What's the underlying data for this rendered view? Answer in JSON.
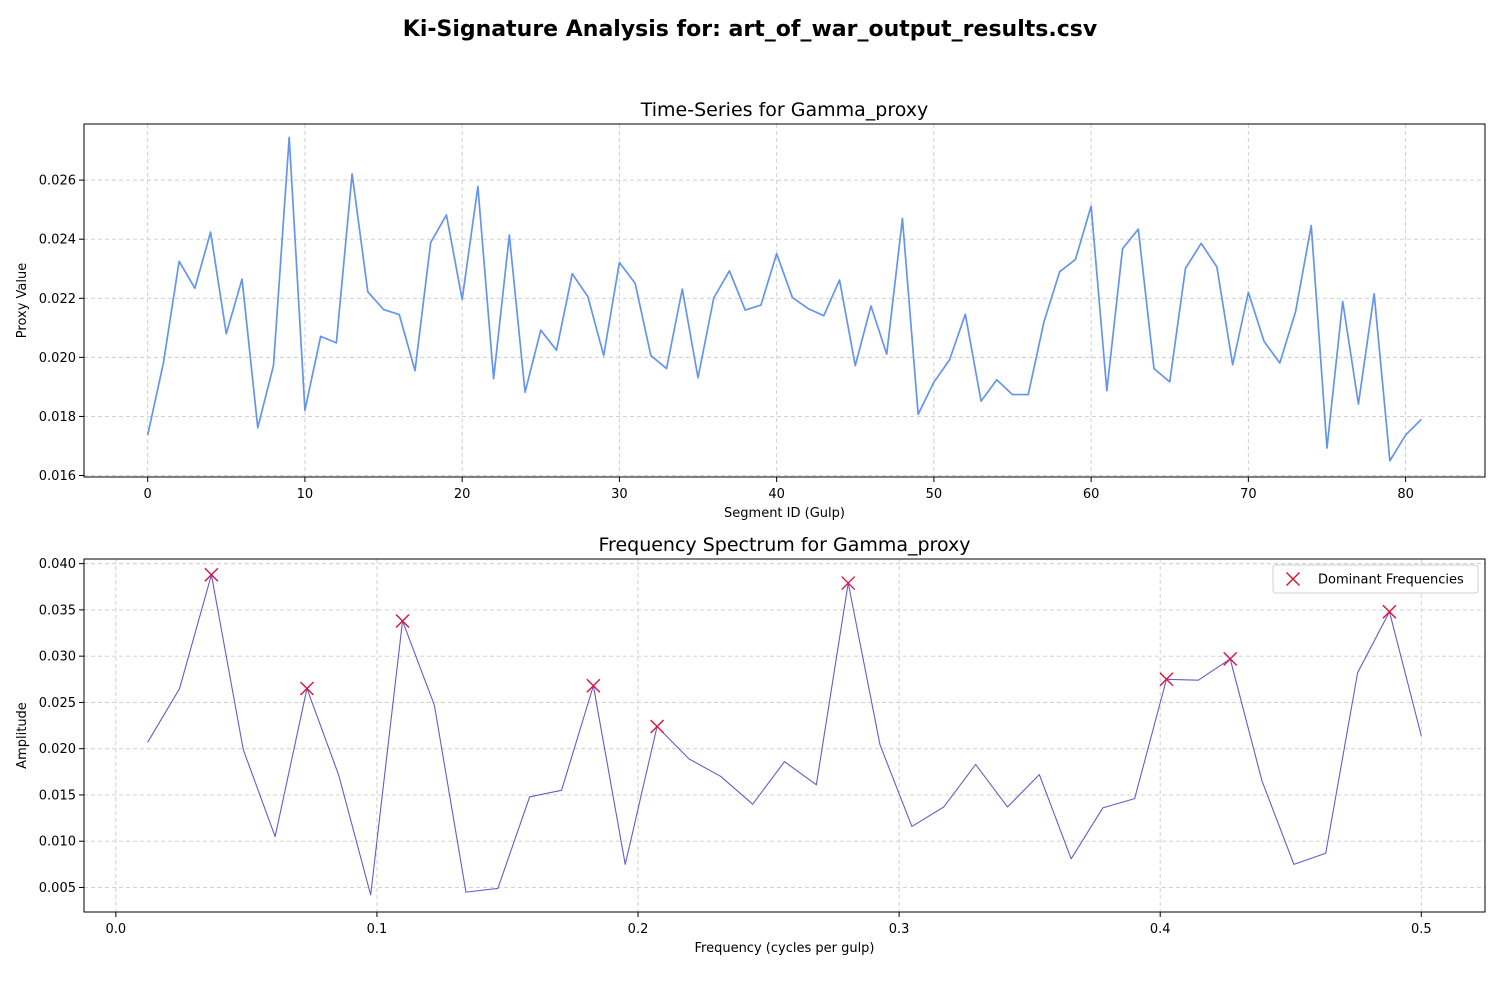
{
  "figure": {
    "suptitle": "Ki-Signature Analysis for: art_of_war_output_results.csv"
  },
  "colors": {
    "series_line": "#6495ed",
    "spectrum_line": "#6a5acd",
    "peak_marker": "#dc143c",
    "grid": "#cccccc",
    "axes": "#000000"
  },
  "chart_data": [
    {
      "type": "line",
      "title": "Time-Series for Gamma_proxy",
      "xlabel": "Segment ID (Gulp)",
      "ylabel": "Proxy Value",
      "xlim": [
        -4.05,
        85.05
      ],
      "ylim": [
        0.01595,
        0.0279
      ],
      "xticks": [
        0,
        10,
        20,
        30,
        40,
        50,
        60,
        70,
        80
      ],
      "xtick_labels": [
        "0",
        "10",
        "20",
        "30",
        "40",
        "50",
        "60",
        "70",
        "80"
      ],
      "yticks": [
        0.016,
        0.018,
        0.02,
        0.022,
        0.024,
        0.026
      ],
      "ytick_labels": [
        "0.016",
        "0.018",
        "0.020",
        "0.022",
        "0.024",
        "0.026"
      ],
      "grid": true,
      "series": [
        {
          "x": [
            0,
            1,
            2,
            3,
            4,
            5,
            6,
            7,
            8,
            9,
            10,
            11,
            12,
            13,
            14,
            15,
            16,
            17,
            18,
            19,
            20,
            21,
            22,
            23,
            24,
            25,
            26,
            27,
            28,
            29,
            30,
            31,
            32,
            33,
            34,
            35,
            36,
            37,
            38,
            39,
            40,
            41,
            42,
            43,
            44,
            45,
            46,
            47,
            48,
            49,
            50,
            51,
            52,
            53,
            54,
            55,
            56,
            57,
            58,
            59,
            60,
            61,
            62,
            63,
            64,
            65,
            66,
            67,
            68,
            69,
            70,
            71,
            72,
            73,
            74,
            75,
            76,
            77,
            78,
            79,
            80,
            81
          ],
          "values": [
            0.01737,
            0.01981,
            0.02325,
            0.02234,
            0.02424,
            0.0208,
            0.02265,
            0.01762,
            0.01972,
            0.02745,
            0.01821,
            0.02071,
            0.02049,
            0.02621,
            0.02222,
            0.02162,
            0.02145,
            0.01955,
            0.02389,
            0.02482,
            0.02196,
            0.02578,
            0.01928,
            0.02414,
            0.01882,
            0.02092,
            0.02024,
            0.02283,
            0.02205,
            0.02006,
            0.02321,
            0.02251,
            0.02006,
            0.01962,
            0.02231,
            0.01931,
            0.02201,
            0.02293,
            0.0216,
            0.02177,
            0.02351,
            0.02203,
            0.02165,
            0.02141,
            0.02262,
            0.01972,
            0.02174,
            0.02011,
            0.0247,
            0.01807,
            0.01916,
            0.01992,
            0.02146,
            0.01852,
            0.01924,
            0.01874,
            0.01874,
            0.0212,
            0.0229,
            0.02331,
            0.02512,
            0.01887,
            0.02368,
            0.02434,
            0.01962,
            0.01917,
            0.02301,
            0.02386,
            0.02306,
            0.01975,
            0.0222,
            0.02054,
            0.01981,
            0.02154,
            0.02446,
            0.01693,
            0.02189,
            0.01842,
            0.02215,
            0.0165,
            0.01737,
            0.0179
          ]
        }
      ]
    },
    {
      "type": "line",
      "title": "Frequency Spectrum for Gamma_proxy",
      "xlabel": "Frequency (cycles per gulp)",
      "ylabel": "Amplitude",
      "xlim": [
        -0.0122,
        0.5244
      ],
      "ylim": [
        0.00235,
        0.0405
      ],
      "xticks": [
        0.0,
        0.1,
        0.2,
        0.3,
        0.4,
        0.5
      ],
      "xtick_labels": [
        "0.0",
        "0.1",
        "0.2",
        "0.3",
        "0.4",
        "0.5"
      ],
      "yticks": [
        0.005,
        0.01,
        0.015,
        0.02,
        0.025,
        0.03,
        0.035,
        0.04
      ],
      "ytick_labels": [
        "0.005",
        "0.010",
        "0.015",
        "0.020",
        "0.025",
        "0.030",
        "0.035",
        "0.040"
      ],
      "grid": true,
      "legend": {
        "position": "top-right",
        "entries": [
          "Dominant Frequencies"
        ]
      },
      "series": [
        {
          "x": [
            0.0122,
            0.0244,
            0.0366,
            0.0488,
            0.061,
            0.0732,
            0.0854,
            0.0976,
            0.1098,
            0.122,
            0.1341,
            0.1463,
            0.1585,
            0.1707,
            0.1829,
            0.1951,
            0.2073,
            0.2195,
            0.2317,
            0.2439,
            0.2561,
            0.2683,
            0.2805,
            0.2927,
            0.3049,
            0.3171,
            0.3293,
            0.3415,
            0.3537,
            0.3659,
            0.378,
            0.3902,
            0.4024,
            0.4146,
            0.4268,
            0.439,
            0.4512,
            0.4634,
            0.4756,
            0.4878,
            0.5
          ],
          "values": [
            0.0207,
            0.0265,
            0.0388,
            0.0199,
            0.0105,
            0.0265,
            0.0171,
            0.0042,
            0.0338,
            0.0247,
            0.0045,
            0.0049,
            0.0148,
            0.0155,
            0.0268,
            0.0075,
            0.0224,
            0.0189,
            0.017,
            0.014,
            0.0186,
            0.0161,
            0.0379,
            0.0204,
            0.0116,
            0.0137,
            0.0183,
            0.0137,
            0.0172,
            0.0081,
            0.0136,
            0.0146,
            0.0275,
            0.0274,
            0.0297,
            0.0165,
            0.0075,
            0.0087,
            0.0282,
            0.0348,
            0.0214
          ]
        },
        {
          "name": "Dominant Frequencies",
          "marker": "x",
          "x": [
            0.0366,
            0.0732,
            0.1098,
            0.1829,
            0.2073,
            0.2805,
            0.4024,
            0.4268,
            0.4878
          ],
          "values": [
            0.0388,
            0.0265,
            0.0338,
            0.0268,
            0.0224,
            0.0379,
            0.0275,
            0.0297,
            0.0348
          ]
        }
      ]
    }
  ]
}
